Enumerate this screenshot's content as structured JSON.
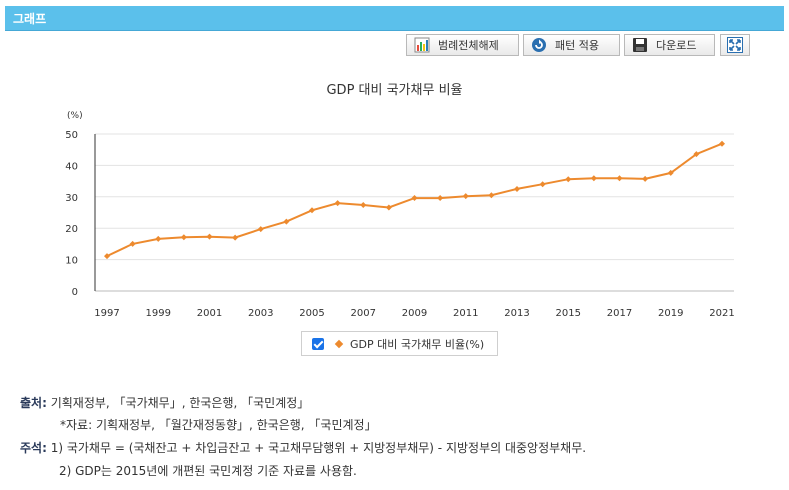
{
  "header": {
    "title": "그래프"
  },
  "toolbar": {
    "legend_clear_label": "범례전체해제",
    "pattern_label": "패턴 적용",
    "download_label": "다운로드"
  },
  "chart_data": {
    "type": "line",
    "title": "GDP 대비 국가채무 비율",
    "ylabel": "(%)",
    "xlabel": "",
    "ylim": [
      0,
      50
    ],
    "yticks": [
      "0",
      "10",
      "20",
      "30",
      "40",
      "50"
    ],
    "x": [
      1997,
      1998,
      1999,
      2000,
      2001,
      2002,
      2003,
      2004,
      2005,
      2006,
      2007,
      2008,
      2009,
      2010,
      2011,
      2012,
      2013,
      2014,
      2015,
      2016,
      2017,
      2018,
      2019,
      2020,
      2021
    ],
    "xtick_labels": [
      "1997",
      "1999",
      "2001",
      "2003",
      "2005",
      "2007",
      "2009",
      "2011",
      "2013",
      "2015",
      "2017",
      "2019",
      "2021"
    ],
    "series": [
      {
        "name": "GDP 대비 국가채무 비율(%)",
        "color": "#ed8a2e",
        "values": [
          11.1,
          15.0,
          16.6,
          17.1,
          17.3,
          17.0,
          19.7,
          22.1,
          25.7,
          28.0,
          27.4,
          26.6,
          29.6,
          29.6,
          30.2,
          30.5,
          32.5,
          34.0,
          35.6,
          35.9,
          35.9,
          35.7,
          37.6,
          43.6,
          46.9
        ]
      }
    ],
    "grid": "horizontal",
    "legend_position": "bottom-center"
  },
  "legend": {
    "label": "GDP 대비 국가채무 비율(%)"
  },
  "notes": {
    "source_label": "출처:",
    "source_text": "기획재정부, 「국가채무」, 한국은행, 「국민계정」",
    "source_sub": "*자료: 기획재정부, 「월간재정동향」, 한국은행, 「국민계정」",
    "footnote_label": "주석:",
    "footnote_1": "1) 국가채무 = (국채잔고 + 차입금잔고 + 국고채무담행위 + 지방정부채무) - 지방정부의 대중앙정부채무.",
    "footnote_2": "2) GDP는 2015년에 개편된 국민계정 기준 자료를 사용함."
  }
}
